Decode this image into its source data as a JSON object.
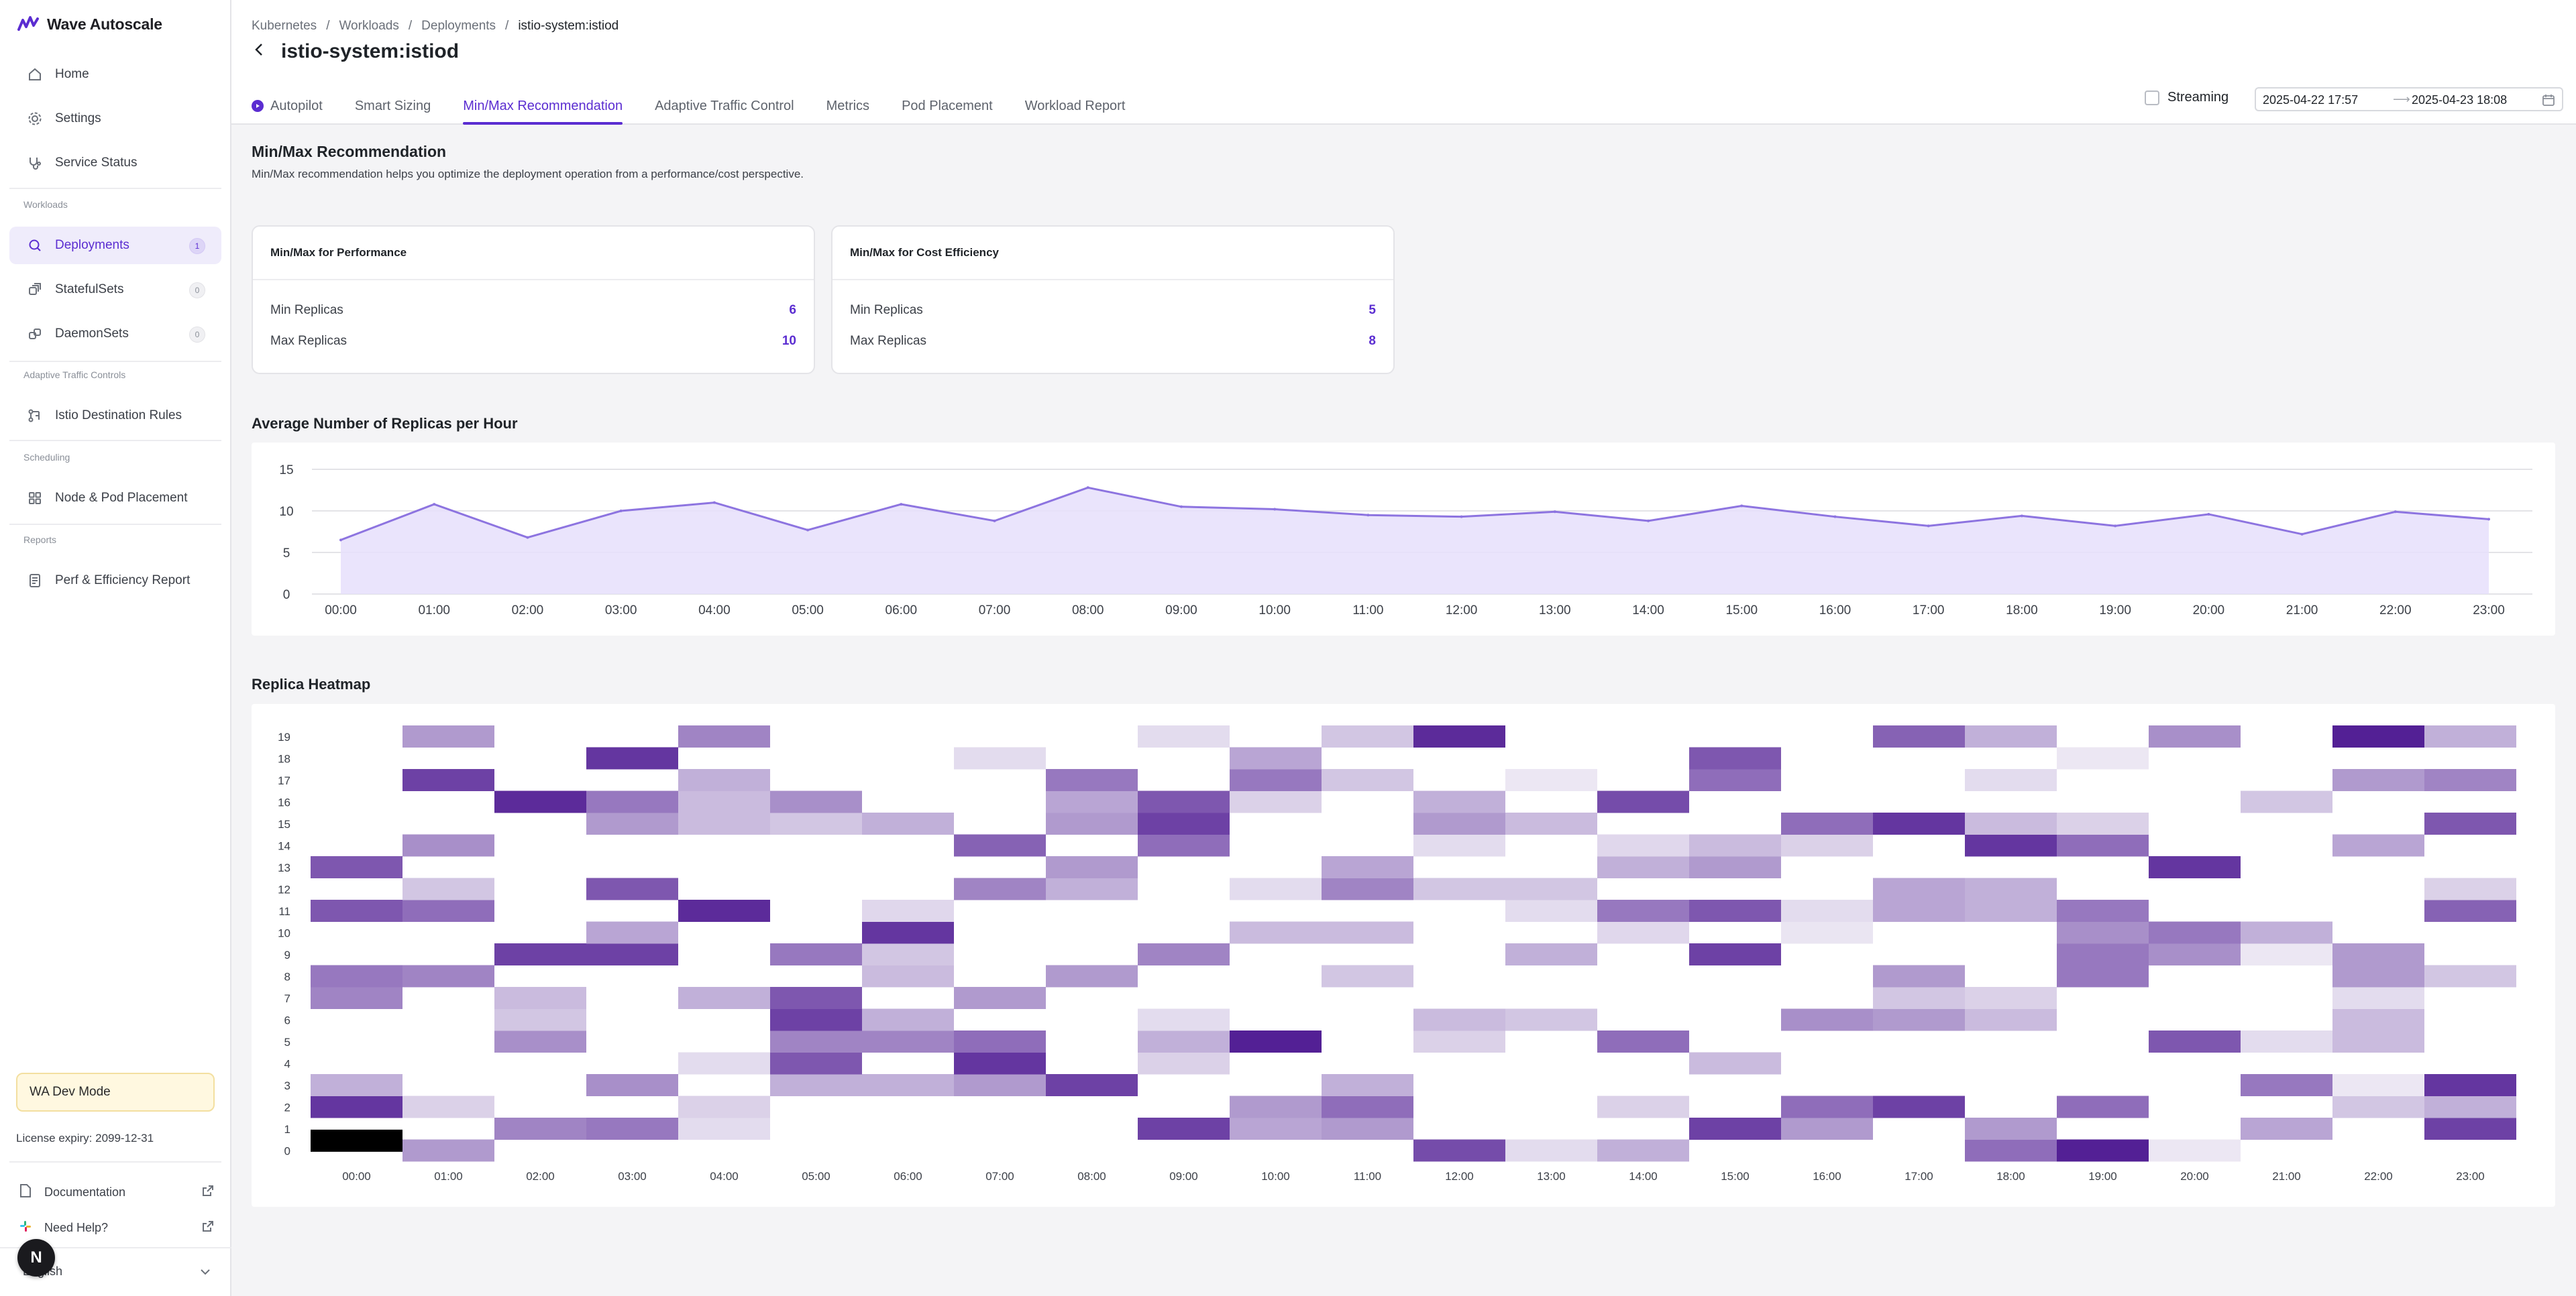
{
  "brand": {
    "name": "Wave Autoscale"
  },
  "sidebar": {
    "items": [
      {
        "label": "Home"
      },
      {
        "label": "Settings"
      },
      {
        "label": "Service Status"
      }
    ],
    "workloads_label": "Workloads",
    "workloads": [
      {
        "label": "Deployments",
        "count": "1"
      },
      {
        "label": "StatefulSets",
        "count": "0"
      },
      {
        "label": "DaemonSets",
        "count": "0"
      }
    ],
    "traffic_label": "Adaptive Traffic Controls",
    "traffic": [
      {
        "label": "Istio Destination Rules"
      }
    ],
    "scheduling_label": "Scheduling",
    "scheduling": [
      {
        "label": "Node & Pod Placement"
      }
    ],
    "reports_label": "Reports",
    "reports": [
      {
        "label": "Perf & Efficiency Report"
      }
    ],
    "dev_mode": "WA Dev Mode",
    "license": "License expiry: 2099-12-31",
    "documentation": "Documentation",
    "need_help": "Need Help?",
    "language": "English",
    "fab_letter": "N"
  },
  "header": {
    "breadcrumb": [
      "Kubernetes",
      "Workloads",
      "Deployments",
      "istio-system:istiod"
    ],
    "title": "istio-system:istiod",
    "tabs": [
      {
        "label": "Autopilot"
      },
      {
        "label": "Smart Sizing"
      },
      {
        "label": "Min/Max Recommendation"
      },
      {
        "label": "Adaptive Traffic Control"
      },
      {
        "label": "Metrics"
      },
      {
        "label": "Pod Placement"
      },
      {
        "label": "Workload Report"
      }
    ],
    "streaming_label": "Streaming",
    "date_from": "2025-04-22 17:57",
    "date_to": "2025-04-23 18:08"
  },
  "main": {
    "title": "Min/Max Recommendation",
    "description": "Min/Max recommendation helps you optimize the deployment operation from a performance/cost perspective.",
    "performance": {
      "title": "Min/Max for Performance",
      "min_label": "Min Replicas",
      "min": "6",
      "max_label": "Max Replicas",
      "max": "10"
    },
    "cost": {
      "title": "Min/Max for Cost Efficiency",
      "min_label": "Min Replicas",
      "min": "5",
      "max_label": "Max Replicas",
      "max": "8"
    },
    "avg_title": "Average Number of Replicas per Hour",
    "heatmap_title": "Replica Heatmap"
  },
  "colors": {
    "accent": "#5b2dd1",
    "line": "#8d74e0",
    "area": "#e6dffb",
    "heat": "#4b1590"
  },
  "chart_data": [
    {
      "type": "area",
      "title": "Average Number of Replicas per Hour",
      "x": [
        "00:00",
        "01:00",
        "02:00",
        "03:00",
        "04:00",
        "05:00",
        "06:00",
        "07:00",
        "08:00",
        "09:00",
        "10:00",
        "11:00",
        "12:00",
        "13:00",
        "14:00",
        "15:00",
        "16:00",
        "17:00",
        "18:00",
        "19:00",
        "20:00",
        "21:00",
        "22:00",
        "23:00"
      ],
      "y": [
        6.5,
        10.8,
        6.8,
        10.0,
        11.0,
        7.7,
        10.8,
        8.8,
        12.8,
        10.5,
        10.2,
        9.5,
        9.3,
        9.9,
        8.8,
        10.6,
        9.3,
        8.2,
        9.4,
        8.2,
        9.6,
        7.2,
        9.9,
        9.0
      ],
      "yticks": [
        0,
        5,
        10,
        15
      ],
      "ylim": [
        0,
        15
      ],
      "grid": true
    },
    {
      "type": "heatmap",
      "title": "Replica Heatmap",
      "x": [
        "00:00",
        "01:00",
        "02:00",
        "03:00",
        "04:00",
        "05:00",
        "06:00",
        "07:00",
        "08:00",
        "09:00",
        "10:00",
        "11:00",
        "12:00",
        "13:00",
        "14:00",
        "15:00",
        "16:00",
        "17:00",
        "18:00",
        "19:00",
        "20:00",
        "21:00",
        "22:00",
        "23:00"
      ],
      "y": [
        0,
        1,
        2,
        3,
        4,
        5,
        6,
        7,
        8,
        9,
        10,
        11,
        12,
        13,
        14,
        15,
        16,
        17,
        18,
        19
      ],
      "cells": [
        [
          0,
          0.45
        ],
        [
          0,
          2,
          0.85
        ],
        [
          0,
          3,
          0.3
        ],
        [
          0,
          7,
          0.5
        ],
        [
          0,
          8,
          0.55
        ],
        [
          0,
          11,
          0.7
        ],
        [
          0,
          13,
          0.7
        ],
        [
          1,
          0,
          0.4
        ],
        [
          1,
          2,
          0.15
        ],
        [
          1,
          8,
          0.5
        ],
        [
          1,
          11,
          0.6
        ],
        [
          1,
          12,
          0.2
        ],
        [
          1,
          14,
          0.45
        ],
        [
          1,
          17,
          0.8
        ],
        [
          1,
          19,
          0.4
        ],
        [
          2,
          1,
          0.5
        ],
        [
          2,
          5,
          0.45
        ],
        [
          2,
          6,
          0.2
        ],
        [
          2,
          7,
          0.25
        ],
        [
          2,
          9,
          0.8
        ],
        [
          2,
          16,
          0.9
        ],
        [
          3,
          1,
          0.55
        ],
        [
          3,
          3,
          0.45
        ],
        [
          3,
          9,
          0.8
        ],
        [
          3,
          10,
          0.35
        ],
        [
          3,
          12,
          0.7
        ],
        [
          3,
          15,
          0.4
        ],
        [
          3,
          16,
          0.55
        ],
        [
          3,
          18,
          0.85
        ],
        [
          4,
          1,
          0.1
        ],
        [
          4,
          2,
          0.15
        ],
        [
          4,
          4,
          0.1
        ],
        [
          4,
          7,
          0.3
        ],
        [
          4,
          11,
          0.9
        ],
        [
          4,
          15,
          0.25
        ],
        [
          4,
          16,
          0.25
        ],
        [
          4,
          17,
          0.3
        ],
        [
          4,
          19,
          0.5
        ],
        [
          5,
          3,
          0.3
        ],
        [
          5,
          4,
          0.7
        ],
        [
          5,
          5,
          0.5
        ],
        [
          5,
          6,
          0.8
        ],
        [
          5,
          7,
          0.7
        ],
        [
          5,
          9,
          0.55
        ],
        [
          5,
          15,
          0.2
        ],
        [
          5,
          16,
          0.45
        ],
        [
          6,
          3,
          0.3
        ],
        [
          6,
          5,
          0.5
        ],
        [
          6,
          6,
          0.3
        ],
        [
          6,
          8,
          0.25
        ],
        [
          6,
          9,
          0.2
        ],
        [
          6,
          10,
          0.85
        ],
        [
          6,
          11,
          0.12
        ],
        [
          6,
          15,
          0.3
        ],
        [
          7,
          3,
          0.4
        ],
        [
          7,
          4,
          0.85
        ],
        [
          7,
          5,
          0.6
        ],
        [
          7,
          7,
          0.4
        ],
        [
          7,
          12,
          0.5
        ],
        [
          7,
          14,
          0.65
        ],
        [
          7,
          18,
          0.1
        ],
        [
          8,
          3,
          0.8
        ],
        [
          8,
          8,
          0.4
        ],
        [
          8,
          12,
          0.3
        ],
        [
          8,
          13,
          0.4
        ],
        [
          8,
          15,
          0.4
        ],
        [
          8,
          16,
          0.35
        ],
        [
          8,
          17,
          0.55
        ],
        [
          9,
          1,
          0.8
        ],
        [
          9,
          4,
          0.15
        ],
        [
          9,
          5,
          0.3
        ],
        [
          9,
          6,
          0.1
        ],
        [
          9,
          9,
          0.5
        ],
        [
          9,
          14,
          0.6
        ],
        [
          9,
          15,
          0.8
        ],
        [
          9,
          16,
          0.7
        ],
        [
          9,
          19,
          0.1
        ],
        [
          10,
          1,
          0.35
        ],
        [
          10,
          2,
          0.4
        ],
        [
          10,
          5,
          0.95
        ],
        [
          10,
          10,
          0.25
        ],
        [
          10,
          12,
          0.1
        ],
        [
          10,
          16,
          0.15
        ],
        [
          10,
          17,
          0.55
        ],
        [
          10,
          18,
          0.35
        ],
        [
          11,
          1,
          0.4
        ],
        [
          11,
          2,
          0.6
        ],
        [
          11,
          3,
          0.3
        ],
        [
          11,
          8,
          0.2
        ],
        [
          11,
          10,
          0.25
        ],
        [
          11,
          12,
          0.5
        ],
        [
          11,
          13,
          0.35
        ],
        [
          11,
          17,
          0.2
        ],
        [
          11,
          19,
          0.2
        ],
        [
          12,
          0,
          0.75
        ],
        [
          12,
          5,
          0.15
        ],
        [
          12,
          6,
          0.25
        ],
        [
          12,
          12,
          0.2
        ],
        [
          12,
          14,
          0.1
        ],
        [
          12,
          15,
          0.4
        ],
        [
          12,
          16,
          0.3
        ],
        [
          12,
          19,
          0.9
        ],
        [
          13,
          0,
          0.1
        ],
        [
          13,
          6,
          0.2
        ],
        [
          13,
          9,
          0.3
        ],
        [
          13,
          11,
          0.1
        ],
        [
          13,
          12,
          0.2
        ],
        [
          13,
          15,
          0.25
        ],
        [
          13,
          17,
          0.05
        ],
        [
          14,
          0,
          0.3
        ],
        [
          14,
          2,
          0.15
        ],
        [
          14,
          5,
          0.6
        ],
        [
          14,
          10,
          0.12
        ],
        [
          14,
          11,
          0.55
        ],
        [
          14,
          13,
          0.3
        ],
        [
          14,
          14,
          0.12
        ],
        [
          14,
          16,
          0.75
        ],
        [
          15,
          1,
          0.8
        ],
        [
          15,
          4,
          0.25
        ],
        [
          15,
          9,
          0.8
        ],
        [
          15,
          11,
          0.7
        ],
        [
          15,
          13,
          0.4
        ],
        [
          15,
          14,
          0.25
        ],
        [
          15,
          17,
          0.6
        ],
        [
          15,
          18,
          0.7
        ],
        [
          16,
          1,
          0.4
        ],
        [
          16,
          2,
          0.6
        ],
        [
          16,
          6,
          0.45
        ],
        [
          16,
          10,
          0.06
        ],
        [
          16,
          11,
          0.1
        ],
        [
          16,
          14,
          0.15
        ],
        [
          16,
          15,
          0.6
        ],
        [
          17,
          2,
          0.8
        ],
        [
          17,
          6,
          0.4
        ],
        [
          17,
          7,
          0.2
        ],
        [
          17,
          8,
          0.4
        ],
        [
          17,
          11,
          0.35
        ],
        [
          17,
          12,
          0.35
        ],
        [
          17,
          15,
          0.85
        ],
        [
          17,
          19,
          0.65
        ],
        [
          18,
          0,
          0.6
        ],
        [
          18,
          1,
          0.4
        ],
        [
          18,
          6,
          0.25
        ],
        [
          18,
          7,
          0.15
        ],
        [
          18,
          11,
          0.3
        ],
        [
          18,
          12,
          0.3
        ],
        [
          18,
          14,
          0.85
        ],
        [
          18,
          15,
          0.25
        ],
        [
          18,
          17,
          0.1
        ],
        [
          18,
          19,
          0.3
        ],
        [
          19,
          0,
          0.95
        ],
        [
          19,
          2,
          0.6
        ],
        [
          19,
          8,
          0.55
        ],
        [
          19,
          9,
          0.55
        ],
        [
          19,
          10,
          0.45
        ],
        [
          19,
          11,
          0.55
        ],
        [
          19,
          14,
          0.6
        ],
        [
          19,
          15,
          0.15
        ],
        [
          19,
          18,
          0.05
        ],
        [
          20,
          0,
          0.05
        ],
        [
          20,
          5,
          0.7
        ],
        [
          20,
          9,
          0.45
        ],
        [
          20,
          10,
          0.55
        ],
        [
          20,
          13,
          0.85
        ],
        [
          20,
          19,
          0.45
        ],
        [
          21,
          1,
          0.35
        ],
        [
          21,
          3,
          0.55
        ],
        [
          21,
          5,
          0.1
        ],
        [
          21,
          9,
          0.05
        ],
        [
          21,
          10,
          0.3
        ],
        [
          21,
          16,
          0.2
        ],
        [
          22,
          2,
          0.2
        ],
        [
          22,
          3,
          0.05
        ],
        [
          22,
          5,
          0.25
        ],
        [
          22,
          6,
          0.25
        ],
        [
          22,
          7,
          0.1
        ],
        [
          22,
          8,
          0.4
        ],
        [
          22,
          9,
          0.4
        ],
        [
          22,
          14,
          0.35
        ],
        [
          22,
          17,
          0.4
        ],
        [
          22,
          19,
          0.95
        ],
        [
          23,
          1,
          0.8
        ],
        [
          23,
          2,
          0.3
        ],
        [
          23,
          3,
          0.85
        ],
        [
          23,
          8,
          0.2
        ],
        [
          23,
          11,
          0.65
        ],
        [
          23,
          12,
          0.15
        ],
        [
          23,
          15,
          0.7
        ],
        [
          23,
          17,
          0.5
        ],
        [
          23,
          19,
          0.3
        ]
      ],
      "color_scale": [
        "#f4f2f8",
        "#4b1590"
      ]
    }
  ]
}
